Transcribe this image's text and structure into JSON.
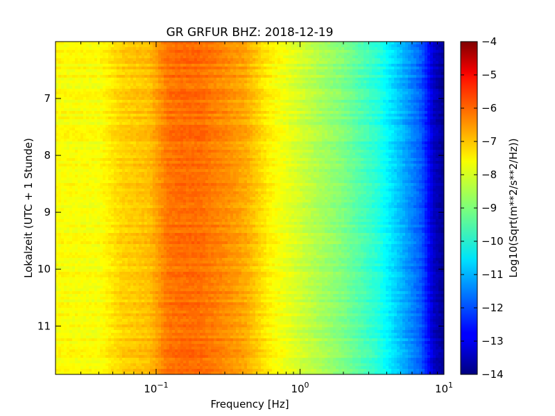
{
  "chart_data": {
    "type": "heatmap",
    "title": "GR GRFUR BHZ: 2018-12-19",
    "xlabel": "Frequency [Hz]",
    "ylabel": "Lokalzeit (UTC + 1 Stunde)",
    "x_scale": "log",
    "xlim": [
      0.02,
      10
    ],
    "ylim": [
      6.0,
      11.85
    ],
    "y_inverted": true,
    "x_ticks": [
      {
        "value": 0.1,
        "base": "10",
        "exp": "−1"
      },
      {
        "value": 1,
        "base": "10",
        "exp": "0"
      },
      {
        "value": 10,
        "base": "10",
        "exp": "1"
      }
    ],
    "y_ticks": [
      {
        "value": 7,
        "label": "7"
      },
      {
        "value": 8,
        "label": "8"
      },
      {
        "value": 9,
        "label": "9"
      },
      {
        "value": 10,
        "label": "10"
      },
      {
        "value": 11,
        "label": "11"
      }
    ],
    "colorbar": {
      "label": "Log10(Sqrt(m**2/s**2/Hz))",
      "colormap": "jet",
      "range": [
        -14,
        -4
      ],
      "ticks": [
        {
          "value": -4,
          "label": "−4"
        },
        {
          "value": -5,
          "label": "−5"
        },
        {
          "value": -6,
          "label": "−6"
        },
        {
          "value": -7,
          "label": "−7"
        },
        {
          "value": -8,
          "label": "−8"
        },
        {
          "value": -9,
          "label": "−9"
        },
        {
          "value": -10,
          "label": "−10"
        },
        {
          "value": -11,
          "label": "−11"
        },
        {
          "value": -12,
          "label": "−12"
        },
        {
          "value": -13,
          "label": "−13"
        },
        {
          "value": -14,
          "label": "−14"
        }
      ]
    },
    "spectrum_profile": {
      "frequency_hz": [
        0.02,
        0.04,
        0.058,
        0.09,
        0.12,
        0.15,
        0.2,
        0.3,
        0.42,
        0.6,
        1.0,
        2.0,
        3.5,
        5.0,
        7.0,
        8.5,
        10
      ],
      "value": [
        -7.75,
        -7.8,
        -7.3,
        -7.1,
        -6.4,
        -6.3,
        -6.3,
        -6.6,
        -6.9,
        -7.6,
        -8.2,
        -9.0,
        -9.9,
        -10.9,
        -11.9,
        -13.3,
        -13.8
      ]
    }
  }
}
